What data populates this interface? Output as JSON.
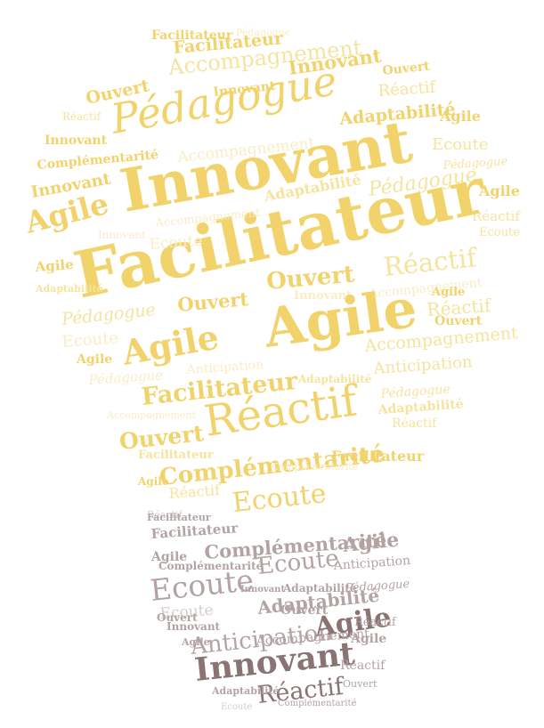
{
  "colors": {
    "bulb_strong": "#f2d36b",
    "bulb_mid": "#f5e39e",
    "bulb_light": "#f8edc6",
    "base_strong": "#8a7373",
    "base_mid": "#b3a3a3",
    "base_light": "#d6cccc"
  },
  "words": [
    "Facilitateur",
    "Pédagogue",
    "Accompagnement",
    "Innovant",
    "Ouvert",
    "Réactif",
    "Adaptabilité",
    "Agile",
    "Complémentarité",
    "Ecoute",
    "Anticipation"
  ]
}
